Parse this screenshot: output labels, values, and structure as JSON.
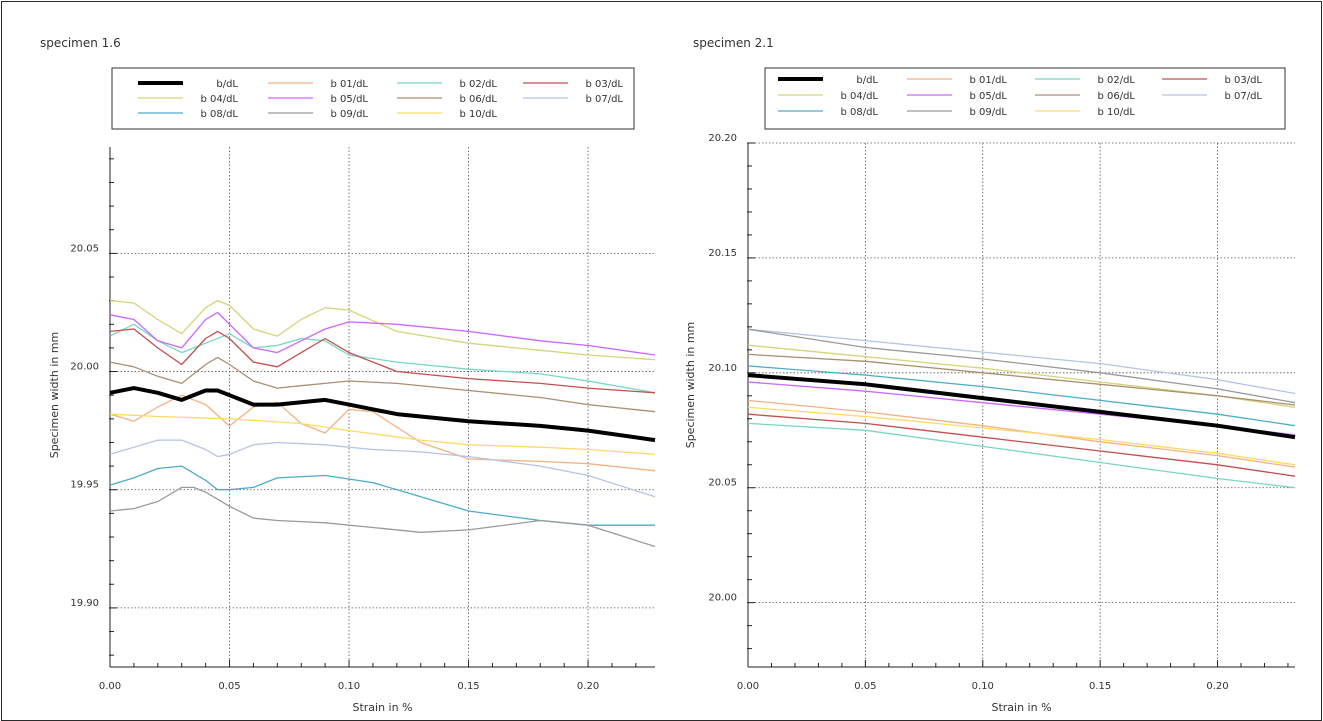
{
  "chart_data": [
    {
      "type": "line",
      "title": "specimen 1.6",
      "xlabel": "Strain in %",
      "ylabel": "Specimen width in mm",
      "xlim": [
        0,
        0.228
      ],
      "ylim": [
        19.875,
        20.095
      ],
      "xticks": [
        0.0,
        0.05,
        0.1,
        0.15,
        0.2
      ],
      "xtick_labels": [
        "0.00",
        "0.05",
        "0.10",
        "0.15",
        "0.20"
      ],
      "yticks": [
        19.9,
        19.95,
        20.0,
        20.05
      ],
      "ytick_labels": [
        "19.90",
        "19.95",
        "20.00",
        "20.05"
      ],
      "grid": true,
      "legend_position": "top",
      "series": [
        {
          "name": "b/dL",
          "color": "#000000",
          "x": [
            0,
            0.01,
            0.02,
            0.03,
            0.04,
            0.045,
            0.05,
            0.06,
            0.07,
            0.08,
            0.09,
            0.1,
            0.12,
            0.15,
            0.18,
            0.2,
            0.228
          ],
          "y": [
            19.991,
            19.993,
            19.991,
            19.988,
            19.992,
            19.992,
            19.99,
            19.986,
            19.986,
            19.987,
            19.988,
            19.986,
            19.982,
            19.979,
            19.977,
            19.975,
            19.971
          ]
        },
        {
          "name": "b 01/dL",
          "color": "#f4b183",
          "x": [
            0,
            0.01,
            0.02,
            0.03,
            0.04,
            0.05,
            0.06,
            0.07,
            0.08,
            0.09,
            0.1,
            0.11,
            0.13,
            0.15,
            0.18,
            0.2,
            0.228
          ],
          "y": [
            19.982,
            19.979,
            19.985,
            19.99,
            19.986,
            19.977,
            19.985,
            19.987,
            19.978,
            19.974,
            19.984,
            19.983,
            19.97,
            19.963,
            19.962,
            19.961,
            19.958
          ]
        },
        {
          "name": "b 02/dL",
          "color": "#76d7c4",
          "x": [
            0,
            0.01,
            0.02,
            0.03,
            0.04,
            0.05,
            0.06,
            0.07,
            0.08,
            0.09,
            0.1,
            0.12,
            0.15,
            0.18,
            0.2,
            0.228
          ],
          "y": [
            20.015,
            20.02,
            20.013,
            20.008,
            20.012,
            20.016,
            20.01,
            20.011,
            20.014,
            20.013,
            20.007,
            20.004,
            20.001,
            19.999,
            19.996,
            19.991
          ]
        },
        {
          "name": "b 03/dL",
          "color": "#c0504d",
          "x": [
            0,
            0.01,
            0.02,
            0.03,
            0.04,
            0.045,
            0.05,
            0.06,
            0.07,
            0.08,
            0.09,
            0.1,
            0.12,
            0.15,
            0.18,
            0.2,
            0.228
          ],
          "y": [
            20.017,
            20.018,
            20.01,
            20.003,
            20.014,
            20.017,
            20.014,
            20.004,
            20.002,
            20.008,
            20.014,
            20.008,
            20.0,
            19.997,
            19.995,
            19.993,
            19.991
          ]
        },
        {
          "name": "b 04/dL",
          "color": "#d4d47a",
          "x": [
            0,
            0.01,
            0.02,
            0.03,
            0.04,
            0.045,
            0.05,
            0.06,
            0.07,
            0.08,
            0.09,
            0.1,
            0.12,
            0.15,
            0.18,
            0.2,
            0.228
          ],
          "y": [
            20.03,
            20.029,
            20.022,
            20.016,
            20.027,
            20.03,
            20.028,
            20.018,
            20.015,
            20.022,
            20.027,
            20.026,
            20.017,
            20.012,
            20.009,
            20.007,
            20.005
          ]
        },
        {
          "name": "b 05/dL",
          "color": "#cc66ff",
          "x": [
            0,
            0.01,
            0.02,
            0.03,
            0.04,
            0.045,
            0.05,
            0.06,
            0.07,
            0.08,
            0.09,
            0.1,
            0.12,
            0.15,
            0.18,
            0.2,
            0.228
          ],
          "y": [
            20.024,
            20.022,
            20.013,
            20.01,
            20.022,
            20.025,
            20.02,
            20.01,
            20.008,
            20.013,
            20.018,
            20.021,
            20.02,
            20.017,
            20.013,
            20.011,
            20.007
          ]
        },
        {
          "name": "b 06/dL",
          "color": "#a89070",
          "x": [
            0,
            0.01,
            0.02,
            0.03,
            0.04,
            0.045,
            0.05,
            0.06,
            0.07,
            0.08,
            0.09,
            0.1,
            0.12,
            0.15,
            0.18,
            0.2,
            0.228
          ],
          "y": [
            20.004,
            20.002,
            19.998,
            19.995,
            20.003,
            20.006,
            20.003,
            19.996,
            19.993,
            19.994,
            19.995,
            19.996,
            19.995,
            19.992,
            19.989,
            19.986,
            19.983
          ]
        },
        {
          "name": "b 07/dL",
          "color": "#b4c4e4",
          "x": [
            0,
            0.01,
            0.02,
            0.03,
            0.04,
            0.045,
            0.05,
            0.06,
            0.07,
            0.09,
            0.11,
            0.13,
            0.15,
            0.18,
            0.2,
            0.228
          ],
          "y": [
            19.965,
            19.968,
            19.971,
            19.971,
            19.967,
            19.964,
            19.965,
            19.969,
            19.97,
            19.969,
            19.967,
            19.966,
            19.964,
            19.96,
            19.956,
            19.947
          ]
        },
        {
          "name": "b 08/dL",
          "color": "#4bacc6",
          "x": [
            0,
            0.01,
            0.02,
            0.03,
            0.04,
            0.045,
            0.05,
            0.06,
            0.07,
            0.09,
            0.11,
            0.13,
            0.15,
            0.18,
            0.2,
            0.228
          ],
          "y": [
            19.952,
            19.955,
            19.959,
            19.96,
            19.954,
            19.95,
            19.95,
            19.951,
            19.955,
            19.956,
            19.953,
            19.947,
            19.941,
            19.937,
            19.935,
            19.935
          ]
        },
        {
          "name": "b 09/dL",
          "color": "#9a9a9a",
          "x": [
            0,
            0.01,
            0.02,
            0.03,
            0.035,
            0.04,
            0.05,
            0.06,
            0.07,
            0.09,
            0.11,
            0.13,
            0.15,
            0.18,
            0.2,
            0.228
          ],
          "y": [
            19.941,
            19.942,
            19.945,
            19.951,
            19.951,
            19.949,
            19.943,
            19.938,
            19.937,
            19.936,
            19.934,
            19.932,
            19.933,
            19.937,
            19.935,
            19.926
          ]
        },
        {
          "name": "b 10/dL",
          "color": "#ffd966",
          "x": [
            0,
            0.02,
            0.05,
            0.08,
            0.1,
            0.13,
            0.15,
            0.18,
            0.2,
            0.228
          ],
          "y": [
            19.982,
            19.981,
            19.98,
            19.978,
            19.975,
            19.971,
            19.969,
            19.968,
            19.967,
            19.965
          ]
        }
      ]
    },
    {
      "type": "line",
      "title": "specimen 2.1",
      "xlabel": "Strain in %",
      "ylabel": "Specimen width in mm",
      "xlim": [
        0,
        0.233
      ],
      "ylim": [
        19.972,
        20.2
      ],
      "xticks": [
        0.0,
        0.05,
        0.1,
        0.15,
        0.2
      ],
      "xtick_labels": [
        "0.00",
        "0.05",
        "0.10",
        "0.15",
        "0.20"
      ],
      "yticks": [
        20.0,
        20.05,
        20.1,
        20.15,
        20.2
      ],
      "ytick_labels": [
        "20.00",
        "20.05",
        "20.10",
        "20.15",
        "20.20"
      ],
      "grid": true,
      "legend_position": "top",
      "series": [
        {
          "name": "b/dL",
          "color": "#000000",
          "x": [
            0,
            0.05,
            0.1,
            0.15,
            0.2,
            0.233
          ],
          "y": [
            20.099,
            20.095,
            20.089,
            20.083,
            20.077,
            20.072
          ]
        },
        {
          "name": "b 01/dL",
          "color": "#f4b183",
          "x": [
            0,
            0.05,
            0.1,
            0.15,
            0.2,
            0.233
          ],
          "y": [
            20.088,
            20.083,
            20.077,
            20.07,
            20.064,
            20.059
          ]
        },
        {
          "name": "b 02/dL",
          "color": "#76d7c4",
          "x": [
            0,
            0.05,
            0.1,
            0.15,
            0.2,
            0.233
          ],
          "y": [
            20.078,
            20.075,
            20.068,
            20.061,
            20.054,
            20.05
          ]
        },
        {
          "name": "b 03/dL",
          "color": "#c0504d",
          "x": [
            0,
            0.05,
            0.1,
            0.15,
            0.2,
            0.233
          ],
          "y": [
            20.082,
            20.078,
            20.072,
            20.066,
            20.06,
            20.055
          ]
        },
        {
          "name": "b 04/dL",
          "color": "#d4d47a",
          "x": [
            0,
            0.05,
            0.1,
            0.15,
            0.2,
            0.233
          ],
          "y": [
            20.112,
            20.107,
            20.102,
            20.096,
            20.09,
            20.085
          ]
        },
        {
          "name": "b 05/dL",
          "color": "#cc66ff",
          "x": [
            0,
            0.05,
            0.1,
            0.15,
            0.2,
            0.233
          ],
          "y": [
            20.096,
            20.092,
            20.087,
            20.082,
            20.077,
            20.073
          ]
        },
        {
          "name": "b 06/dL",
          "color": "#a89070",
          "x": [
            0,
            0.05,
            0.1,
            0.15,
            0.2,
            0.233
          ],
          "y": [
            20.108,
            20.105,
            20.1,
            20.095,
            20.09,
            20.086
          ]
        },
        {
          "name": "b 07/dL",
          "color": "#b4c4e4",
          "x": [
            0,
            0.05,
            0.1,
            0.15,
            0.2,
            0.233
          ],
          "y": [
            20.119,
            20.114,
            20.109,
            20.104,
            20.097,
            20.091
          ]
        },
        {
          "name": "b 08/dL",
          "color": "#4bacc6",
          "x": [
            0,
            0.05,
            0.1,
            0.15,
            0.2,
            0.233
          ],
          "y": [
            20.103,
            20.099,
            20.094,
            20.088,
            20.082,
            20.077
          ]
        },
        {
          "name": "b 09/dL",
          "color": "#9a9a9a",
          "x": [
            0,
            0.05,
            0.1,
            0.15,
            0.2,
            0.233
          ],
          "y": [
            20.119,
            20.111,
            20.106,
            20.1,
            20.093,
            20.087
          ]
        },
        {
          "name": "b 10/dL",
          "color": "#ffd966",
          "x": [
            0,
            0.05,
            0.1,
            0.15,
            0.2,
            0.233
          ],
          "y": [
            20.085,
            20.081,
            20.076,
            20.071,
            20.065,
            20.06
          ]
        }
      ]
    }
  ]
}
